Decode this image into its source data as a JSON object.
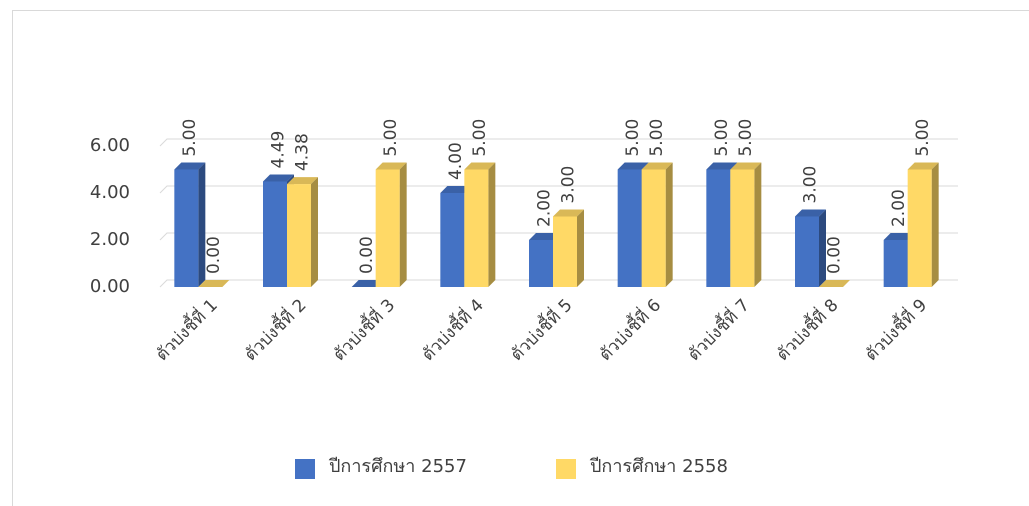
{
  "chart_data": {
    "type": "bar",
    "categories": [
      "ตัวบ่งชี้ที่ 1",
      "ตัวบ่งชี้ที่ 2",
      "ตัวบ่งชี้ที่ 3",
      "ตัวบ่งชี้ที่ 4",
      "ตัวบ่งชี้ที่ 5",
      "ตัวบ่งชี้ที่ 6",
      "ตัวบ่งชี้ที่ 7",
      "ตัวบ่งชี้ที่ 8",
      "ตัวบ่งชี้ที่ 9"
    ],
    "series": [
      {
        "name": "ปีการศึกษา 2557",
        "color": "#4472c4",
        "values": [
          5,
          4.49,
          0,
          4,
          2,
          5,
          5,
          3,
          2
        ],
        "value_labels": [
          "5.00",
          "4.49",
          "0.00",
          "4.00",
          "2.00",
          "5.00",
          "5.00",
          "3.00",
          "2.00"
        ]
      },
      {
        "name": "ปีการศึกษา 2558",
        "color": "#ffd966",
        "values": [
          0,
          4.38,
          5,
          5,
          3,
          5,
          5,
          0,
          5
        ],
        "value_labels": [
          "0.00",
          "4.38",
          "5.00",
          "5.00",
          "3.00",
          "5.00",
          "5.00",
          "0.00",
          "5.00"
        ]
      }
    ],
    "ylim": [
      0,
      6
    ],
    "yticks": [
      {
        "value": 0,
        "label": "0.00"
      },
      {
        "value": 2,
        "label": "2.00"
      },
      {
        "value": 4,
        "label": "4.00"
      },
      {
        "value": 6,
        "label": "6.00"
      }
    ],
    "grid": true,
    "legend": "bottom"
  }
}
